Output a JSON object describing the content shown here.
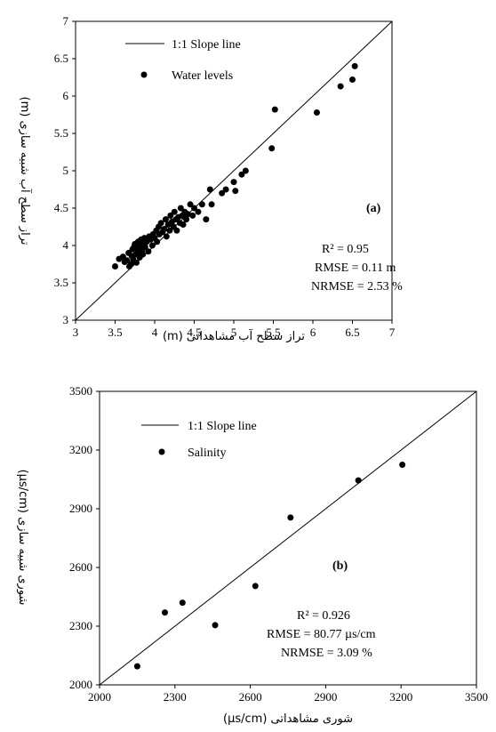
{
  "chart_data": [
    {
      "type": "scatter",
      "panel_label": "(a)",
      "xlabel": "تراز سطح آب مشاهداتی (m)",
      "ylabel": "تراز سطح آب شبیه سازی (m)",
      "xlim": [
        3,
        7
      ],
      "ylim": [
        3,
        7
      ],
      "x_ticks": [
        "3",
        "3.5",
        "4",
        "4.5",
        "5",
        "5.5",
        "6",
        "6.5",
        "7"
      ],
      "y_ticks": [
        "3",
        "3.5",
        "4",
        "4.5",
        "5",
        "5.5",
        "6",
        "6.5",
        "7"
      ],
      "legend": {
        "line": "1:1 Slope line",
        "points": "Water levels",
        "position": "top-left"
      },
      "stats": [
        "R² = 0.95",
        "RMSE = 0.11 m",
        "NRMSE = 2.53 %"
      ],
      "reference_line": {
        "from": [
          3,
          3
        ],
        "to": [
          7,
          7
        ]
      },
      "series": [
        {
          "name": "Water levels",
          "points": [
            [
              3.5,
              3.72
            ],
            [
              3.55,
              3.82
            ],
            [
              3.6,
              3.85
            ],
            [
              3.62,
              3.78
            ],
            [
              3.65,
              3.8
            ],
            [
              3.67,
              3.9
            ],
            [
              3.68,
              3.72
            ],
            [
              3.7,
              3.75
            ],
            [
              3.71,
              3.86
            ],
            [
              3.72,
              3.95
            ],
            [
              3.73,
              3.81
            ],
            [
              3.74,
              3.98
            ],
            [
              3.75,
              4.02
            ],
            [
              3.76,
              3.88
            ],
            [
              3.77,
              3.77
            ],
            [
              3.78,
              3.95
            ],
            [
              3.79,
              4.05
            ],
            [
              3.8,
              3.9
            ],
            [
              3.81,
              3.84
            ],
            [
              3.82,
              4.0
            ],
            [
              3.83,
              4.08
            ],
            [
              3.84,
              3.93
            ],
            [
              3.85,
              3.88
            ],
            [
              3.86,
              4.05
            ],
            [
              3.87,
              4.1
            ],
            [
              3.88,
              3.98
            ],
            [
              3.9,
              4.05
            ],
            [
              3.92,
              3.92
            ],
            [
              3.93,
              4.12
            ],
            [
              3.95,
              4.08
            ],
            [
              3.97,
              4.0
            ],
            [
              3.98,
              4.15
            ],
            [
              4.0,
              4.1
            ],
            [
              4.02,
              4.2
            ],
            [
              4.03,
              4.05
            ],
            [
              4.05,
              4.25
            ],
            [
              4.06,
              4.15
            ],
            [
              4.08,
              4.3
            ],
            [
              4.1,
              4.18
            ],
            [
              4.12,
              4.22
            ],
            [
              4.14,
              4.35
            ],
            [
              4.15,
              4.12
            ],
            [
              4.17,
              4.28
            ],
            [
              4.19,
              4.2
            ],
            [
              4.2,
              4.4
            ],
            [
              4.22,
              4.32
            ],
            [
              4.24,
              4.25
            ],
            [
              4.25,
              4.45
            ],
            [
              4.27,
              4.35
            ],
            [
              4.28,
              4.2
            ],
            [
              4.3,
              4.38
            ],
            [
              4.32,
              4.3
            ],
            [
              4.33,
              4.5
            ],
            [
              4.35,
              4.4
            ],
            [
              4.36,
              4.28
            ],
            [
              4.38,
              4.45
            ],
            [
              4.4,
              4.35
            ],
            [
              4.42,
              4.42
            ],
            [
              4.45,
              4.55
            ],
            [
              4.48,
              4.4
            ],
            [
              4.5,
              4.5
            ],
            [
              4.55,
              4.45
            ],
            [
              4.6,
              4.55
            ],
            [
              4.65,
              4.35
            ],
            [
              4.7,
              4.75
            ],
            [
              4.72,
              4.55
            ],
            [
              4.85,
              4.7
            ],
            [
              4.9,
              4.75
            ],
            [
              5.0,
              4.85
            ],
            [
              5.02,
              4.73
            ],
            [
              5.1,
              4.95
            ],
            [
              5.15,
              5.0
            ],
            [
              5.48,
              5.3
            ],
            [
              5.52,
              5.82
            ],
            [
              6.05,
              5.78
            ],
            [
              6.35,
              6.13
            ],
            [
              6.5,
              6.22
            ],
            [
              6.53,
              6.4
            ]
          ]
        }
      ]
    },
    {
      "type": "scatter",
      "panel_label": "(b)",
      "xlabel": "شوری مشاهداتی (µs/cm)",
      "ylabel": "شوری شبیه سازی (µs/cm)",
      "xlim": [
        2000,
        3500
      ],
      "ylim": [
        2000,
        3500
      ],
      "x_ticks": [
        "2000",
        "2300",
        "2600",
        "2900",
        "3200",
        "3500"
      ],
      "y_ticks": [
        "2000",
        "2300",
        "2600",
        "2900",
        "3200",
        "3500"
      ],
      "legend": {
        "line": "1:1 Slope line",
        "points": "Salinity",
        "position": "top-left"
      },
      "stats": [
        "R² = 0.926",
        "RMSE = 80.77 µs/cm",
        "NRMSE = 3.09 %"
      ],
      "reference_line": {
        "from": [
          2000,
          2000
        ],
        "to": [
          3500,
          3500
        ]
      },
      "series": [
        {
          "name": "Salinity",
          "points": [
            [
              2150,
              2095
            ],
            [
              2260,
              2370
            ],
            [
              2330,
              2420
            ],
            [
              2460,
              2305
            ],
            [
              2620,
              2505
            ],
            [
              2760,
              2855
            ],
            [
              3030,
              3045
            ],
            [
              3205,
              3125
            ]
          ]
        }
      ]
    }
  ]
}
